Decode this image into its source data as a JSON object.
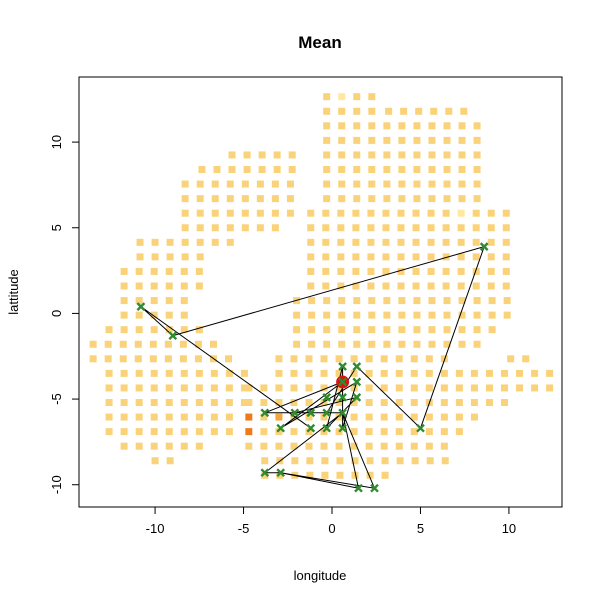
{
  "chart_data": {
    "type": "heatmap",
    "title": "Mean",
    "xlabel": "longitude",
    "ylabel": "lattitude",
    "xlim": [
      -14.3,
      13.0
    ],
    "ylim": [
      -11.3,
      13.8
    ],
    "x_ticks": [
      -10,
      -5,
      0,
      5,
      10
    ],
    "x_tick_labels": [
      "-10",
      "-5",
      "0",
      "5",
      "10"
    ],
    "y_ticks": [
      -10,
      -5,
      0,
      5,
      10
    ],
    "y_tick_labels": [
      "-10",
      "-5",
      "0",
      "5",
      "10"
    ],
    "grid": false,
    "colors": {
      "pale": "#FFE8A0",
      "light": "#F9D27A",
      "mid": "#F5A53A",
      "dark": "#EE7A1A",
      "point": "#2E8B2E",
      "highlight": "#DD1111",
      "line": "#000000"
    },
    "cell_rows": [
      {
        "y": 12.65,
        "cols": [
          [
            -0.3,
            2.35
          ]
        ]
      },
      {
        "y": 11.8,
        "cols": [
          [
            -0.3,
            2.35
          ],
          [
            3.2,
            7.85
          ]
        ]
      },
      {
        "y": 10.95,
        "cols": [
          [
            -0.3,
            7.85
          ]
        ]
      },
      {
        "y": 10.1,
        "cols": [
          [
            -0.3,
            8.1
          ]
        ]
      },
      {
        "y": 9.25,
        "cols": [
          [
            -5.65,
            -2.0
          ],
          [
            -0.3,
            8.1
          ]
        ]
      },
      {
        "y": 8.4,
        "cols": [
          [
            -7.35,
            -2.0
          ],
          [
            -0.3,
            8.1
          ]
        ]
      },
      {
        "y": 7.55,
        "cols": [
          [
            -8.3,
            -2.0
          ],
          [
            -0.3,
            8.1
          ]
        ]
      },
      {
        "y": 6.7,
        "cols": [
          [
            -8.3,
            -2.0
          ],
          [
            -0.3,
            8.1
          ]
        ]
      },
      {
        "y": 5.85,
        "cols": [
          [
            -8.3,
            -2.0
          ],
          [
            -1.2,
            10.1
          ]
        ]
      },
      {
        "y": 5.0,
        "cols": [
          [
            -8.3,
            -3.0
          ],
          [
            -1.2,
            10.1
          ]
        ]
      },
      {
        "y": 4.15,
        "cols": [
          [
            -10.85,
            -5.65
          ],
          [
            -1.2,
            10.1
          ]
        ]
      },
      {
        "y": 3.3,
        "cols": [
          [
            -10.85,
            -7.35
          ],
          [
            -1.2,
            10.1
          ]
        ]
      },
      {
        "y": 2.45,
        "cols": [
          [
            -11.75,
            -7.35
          ],
          [
            -1.2,
            10.1
          ]
        ]
      },
      {
        "y": 1.6,
        "cols": [
          [
            -11.75,
            -7.35
          ],
          [
            -1.2,
            10.1
          ]
        ]
      },
      {
        "y": 0.75,
        "cols": [
          [
            -11.75,
            -8.3
          ],
          [
            -2.0,
            10.1
          ]
        ]
      },
      {
        "y": -0.1,
        "cols": [
          [
            -11.75,
            -8.3
          ],
          [
            -2.0,
            10.1
          ]
        ]
      },
      {
        "y": -0.95,
        "cols": [
          [
            -12.6,
            -7.35
          ],
          [
            -2.0,
            9.3
          ]
        ]
      },
      {
        "y": -1.8,
        "cols": [
          [
            -13.5,
            -6.5
          ],
          [
            -2.0,
            8.3
          ]
        ]
      },
      {
        "y": -2.65,
        "cols": [
          [
            -13.5,
            -5.65
          ],
          [
            -3.0,
            6.7
          ],
          [
            10.1,
            11.0
          ]
        ]
      },
      {
        "y": -3.5,
        "cols": [
          [
            -12.6,
            -4.7
          ],
          [
            -3.0,
            12.0
          ]
        ]
      },
      {
        "y": -4.35,
        "cols": [
          [
            -12.6,
            -4.7
          ],
          [
            -4.7,
            12.0
          ]
        ]
      },
      {
        "y": -5.2,
        "cols": [
          [
            -12.6,
            -4.7
          ],
          [
            -4.7,
            10.1
          ]
        ]
      },
      {
        "y": -6.05,
        "cols": [
          [
            -12.6,
            -5.65
          ],
          [
            -4.7,
            8.3
          ]
        ]
      },
      {
        "y": -6.9,
        "cols": [
          [
            -12.6,
            -5.65
          ],
          [
            -4.7,
            7.3
          ]
        ]
      },
      {
        "y": -7.75,
        "cols": [
          [
            -11.75,
            -7.35
          ],
          [
            -4.7,
            6.5
          ]
        ]
      },
      {
        "y": -8.6,
        "cols": [
          [
            -10.0,
            -9.1
          ],
          [
            -3.8,
            6.5
          ]
        ]
      },
      {
        "y": -9.45,
        "cols": [
          [
            -3.8,
            3.2
          ]
        ]
      }
    ],
    "hot_cells": [
      {
        "x": 1.45,
        "y": -3.5,
        "level": "dark"
      },
      {
        "x": 2.35,
        "y": -3.5,
        "level": "dark"
      },
      {
        "x": -0.3,
        "y": -4.35,
        "level": "mid"
      },
      {
        "x": 1.45,
        "y": -4.35,
        "level": "mid"
      },
      {
        "x": -4.7,
        "y": -6.05,
        "level": "dark"
      },
      {
        "x": -3.8,
        "y": -6.05,
        "level": "mid"
      },
      {
        "x": -3.0,
        "y": -6.05,
        "level": "mid"
      },
      {
        "x": -2.0,
        "y": -6.05,
        "level": "mid"
      },
      {
        "x": -1.2,
        "y": -6.05,
        "level": "mid"
      },
      {
        "x": 2.35,
        "y": -6.05,
        "level": "mid"
      },
      {
        "x": -4.7,
        "y": -6.9,
        "level": "dark"
      },
      {
        "x": -3.8,
        "y": -6.9,
        "level": "mid"
      },
      {
        "x": -2.0,
        "y": -6.9,
        "level": "mid"
      },
      {
        "x": 1.45,
        "y": -6.9,
        "level": "dark"
      },
      {
        "x": -3.8,
        "y": -7.75,
        "level": "mid"
      },
      {
        "x": -1.2,
        "y": -7.75,
        "level": "mid"
      },
      {
        "x": 1.45,
        "y": -7.75,
        "level": "dark"
      },
      {
        "x": 2.35,
        "y": -8.6,
        "level": "mid"
      },
      {
        "x": -0.3,
        "y": -8.6,
        "level": "mid"
      }
    ],
    "pale_cells": [
      {
        "x": -10.85,
        "y": 0.75
      },
      {
        "x": -10.0,
        "y": -0.1
      },
      {
        "x": -9.1,
        "y": -0.95
      },
      {
        "x": -12.6,
        "y": 2.45
      },
      {
        "x": -11.75,
        "y": -2.65
      },
      {
        "x": -6.5,
        "y": -3.5
      },
      {
        "x": 0.55,
        "y": 12.65
      },
      {
        "x": 7.3,
        "y": 5.85
      },
      {
        "x": 8.3,
        "y": 4.15
      },
      {
        "x": 6.5,
        "y": 1.6
      },
      {
        "x": -2.0,
        "y": 2.45
      },
      {
        "x": 3.2,
        "y": -8.6
      },
      {
        "x": -7.35,
        "y": 9.25
      },
      {
        "x": 4.8,
        "y": -6.05
      },
      {
        "x": -5.65,
        "y": -1.8
      }
    ],
    "points": [
      {
        "x": -10.8,
        "y": 0.4
      },
      {
        "x": -9.0,
        "y": -1.3
      },
      {
        "x": 8.6,
        "y": 3.9
      },
      {
        "x": 5.0,
        "y": -6.7
      },
      {
        "x": 0.6,
        "y": -3.1
      },
      {
        "x": 1.4,
        "y": -3.1
      },
      {
        "x": 0.6,
        "y": -4.0
      },
      {
        "x": 1.4,
        "y": -4.0
      },
      {
        "x": 0.6,
        "y": -4.9
      },
      {
        "x": 1.4,
        "y": -4.9
      },
      {
        "x": -0.3,
        "y": -4.9
      },
      {
        "x": -3.8,
        "y": -5.8
      },
      {
        "x": -2.1,
        "y": -5.8
      },
      {
        "x": -1.2,
        "y": -5.8
      },
      {
        "x": -0.3,
        "y": -5.8
      },
      {
        "x": 0.6,
        "y": -5.8
      },
      {
        "x": -2.9,
        "y": -6.7
      },
      {
        "x": -1.2,
        "y": -6.7
      },
      {
        "x": -0.3,
        "y": -6.7
      },
      {
        "x": 0.6,
        "y": -6.7
      },
      {
        "x": -3.8,
        "y": -9.3
      },
      {
        "x": -2.9,
        "y": -9.3
      },
      {
        "x": 1.5,
        "y": -10.2
      },
      {
        "x": 2.4,
        "y": -10.2
      }
    ],
    "path": [
      [
        -1.2,
        -6.7
      ],
      [
        -10.8,
        0.4
      ],
      [
        -9.0,
        -1.3
      ],
      [
        8.6,
        3.9
      ],
      [
        5.0,
        -6.7
      ],
      [
        1.4,
        -3.1
      ],
      [
        -0.3,
        -5.8
      ],
      [
        -3.8,
        -5.8
      ],
      [
        0.6,
        -4.0
      ],
      [
        -2.9,
        -6.7
      ],
      [
        1.4,
        -4.0
      ],
      [
        0.6,
        -6.7
      ],
      [
        0.6,
        -3.1
      ],
      [
        -0.3,
        -6.7
      ],
      [
        1.4,
        -4.9
      ],
      [
        -2.1,
        -5.8
      ],
      [
        0.6,
        -5.8
      ],
      [
        -3.8,
        -9.3
      ],
      [
        -2.9,
        -9.3
      ],
      [
        2.4,
        -10.2
      ],
      [
        0.6,
        -5.8
      ],
      [
        1.5,
        -10.2
      ],
      [
        -2.9,
        -9.3
      ]
    ],
    "highlight_point": {
      "x": 0.6,
      "y": -4.0
    }
  }
}
